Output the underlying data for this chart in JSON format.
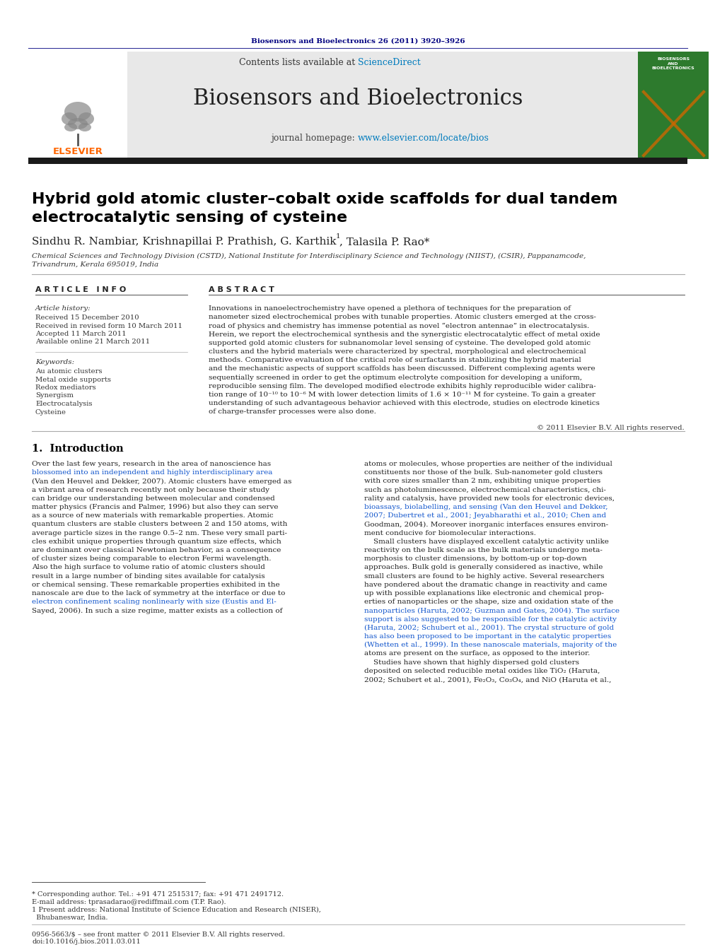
{
  "page_bg": "#ffffff",
  "top_citation": "Biosensors and Bioelectronics 26 (2011) 3920–3926",
  "journal_header_bg": "#e8e8e8",
  "journal_name": "Biosensors and Bioelectronics",
  "contents_line": "Contents lists available at ScienceDirect",
  "homepage_line": "journal homepage: www.elsevier.com/locate/bios",
  "elsevier_color": "#ff6600",
  "sciencedirect_color": "#007bbd",
  "homepage_color": "#007bbd",
  "article_title": "Hybrid gold atomic cluster–cobalt oxide scaffolds for dual tandem\nelectrocatalytic sensing of cysteine",
  "authors": "Sindhu R. Nambiar, Krishnapillai P. Prathish, G. Karthik",
  "authors_super": "1",
  "authors2": ", Talasila P. Rao*",
  "affiliation": "Chemical Sciences and Technology Division (CSTD), National Institute for Interdisciplinary Science and Technology (NIIST), (CSIR), Pappanamcode,\nTrivandrum, Kerala 695019, India",
  "article_info_header": "A R T I C L E   I N F O",
  "abstract_header": "A B S T R A C T",
  "article_history_label": "Article history:",
  "received1": "Received 15 December 2010",
  "received2": "Received in revised form 10 March 2011",
  "accepted": "Accepted 11 March 2011",
  "available": "Available online 21 March 2011",
  "keywords_label": "Keywords:",
  "keyword1": "Au atomic clusters",
  "keyword2": "Metal oxide supports",
  "keyword3": "Redox mediators",
  "keyword4": "Synergism",
  "keyword5": "Electrocatalysis",
  "keyword6": "Cysteine",
  "abstract_text": "Innovations in nanoelectrochemistry have opened a plethora of techniques for the preparation of\nnanometer sized electrochemical probes with tunable properties. Atomic clusters emerged at the cross-\nroad of physics and chemistry has immense potential as novel “electron antennae” in electrocatalysis.\nHerein, we report the electrochemical synthesis and the synergistic electrocatalytic effect of metal oxide\nsupported gold atomic clusters for subnanomolar level sensing of cysteine. The developed gold atomic\nclusters and the hybrid materials were characterized by spectral, morphological and electrochemical\nmethods. Comparative evaluation of the critical role of surfactants in stabilizing the hybrid material\nand the mechanistic aspects of support scaffolds has been discussed. Different complexing agents were\nsequentially screened in order to get the optimum electrolyte composition for developing a uniform,\nreproducible sensing film. The developed modified electrode exhibits highly reproducible wider calibra-\ntion range of 10⁻¹⁰ to 10⁻⁶ M with lower detection limits of 1.6 × 10⁻¹¹ M for cysteine. To gain a greater\nunderstanding of such advantageous behavior achieved with this electrode, studies on electrode kinetics\nof charge-transfer processes were also done.",
  "copyright_line": "© 2011 Elsevier B.V. All rights reserved.",
  "section1_title": "1.  Introduction",
  "intro_col1": [
    "Over the last few years, research in the area of nanoscience has",
    "blossomed into an independent and highly interdisciplinary area",
    "(Van den Heuvel and Dekker, 2007). Atomic clusters have emerged as",
    "a vibrant area of research recently not only because their study",
    "can bridge our understanding between molecular and condensed",
    "matter physics (Francis and Palmer, 1996) but also they can serve",
    "as a source of new materials with remarkable properties. Atomic",
    "quantum clusters are stable clusters between 2 and 150 atoms, with",
    "average particle sizes in the range 0.5–2 nm. These very small parti-",
    "cles exhibit unique properties through quantum size effects, which",
    "are dominant over classical Newtonian behavior, as a consequence",
    "of cluster sizes being comparable to electron Fermi wavelength.",
    "Also the high surface to volume ratio of atomic clusters should",
    "result in a large number of binding sites available for catalysis",
    "or chemical sensing. These remarkable properties exhibited in the",
    "nanoscale are due to the lack of symmetry at the interface or due to",
    "electron confinement scaling nonlinearly with size (Eustis and El-",
    "Sayed, 2006). In such a size regime, matter exists as a collection of"
  ],
  "intro_col1_links": [
    1,
    17
  ],
  "intro_col2": [
    "atoms or molecules, whose properties are neither of the individual",
    "constituents nor those of the bulk. Sub-nanometer gold clusters",
    "with core sizes smaller than 2 nm, exhibiting unique properties",
    "such as photoluminescence, electrochemical characteristics, chi-",
    "rality and catalysis, have provided new tools for electronic devices,",
    "bioassays, biolabelling, and sensing (Van den Heuvel and Dekker,",
    "2007; Dubertret et al., 2001; Jeyabharathi et al., 2010; Chen and",
    "Goodman, 2004). Moreover inorganic interfaces ensures environ-",
    "ment conducive for biomolecular interactions.",
    "    Small clusters have displayed excellent catalytic activity unlike",
    "reactivity on the bulk scale as the bulk materials undergo meta-",
    "morphosis to cluster dimensions, by bottom-up or top-down",
    "approaches. Bulk gold is generally considered as inactive, while",
    "small clusters are found to be highly active. Several researchers",
    "have pondered about the dramatic change in reactivity and came",
    "up with possible explanations like electronic and chemical prop-",
    "erties of nanoparticles or the shape, size and oxidation state of the",
    "nanoparticles (Haruta, 2002; Guzman and Gates, 2004). The surface",
    "support is also suggested to be responsible for the catalytic activity",
    "(Haruta, 2002; Schubert et al., 2001). The crystal structure of gold",
    "has also been proposed to be important in the catalytic properties",
    "(Whetten et al., 1999). In these nanoscale materials, majority of the",
    "atoms are present on the surface, as opposed to the interior.",
    "    Studies have shown that highly dispersed gold clusters",
    "deposited on selected reducible metal oxides like TiO₂ (Haruta,",
    "2002; Schubert et al., 2001), Fe₂O₃, Co₃O₄, and NiO (Haruta et al.,"
  ],
  "footnote_star": "* Corresponding author. Tel.: +91 471 2515317; fax: +91 471 2491712.",
  "footnote_email": "E-mail address: tprasadarao@rediffmail.com (T.P. Rao).",
  "footnote1a": "1 Present address: National Institute of Science Education and Research (NISER),",
  "footnote1b": "  Bhubaneswar, India.",
  "footer_left": "0956-5663/$ – see front matter © 2011 Elsevier B.V. All rights reserved.",
  "footer_doi": "doi:10.1016/j.bios.2011.03.011",
  "thick_bar_color": "#1a1a1a",
  "thin_line_color": "#333333",
  "header_bg": "#e8e8e8",
  "cover_bg": "#2d7a2d"
}
